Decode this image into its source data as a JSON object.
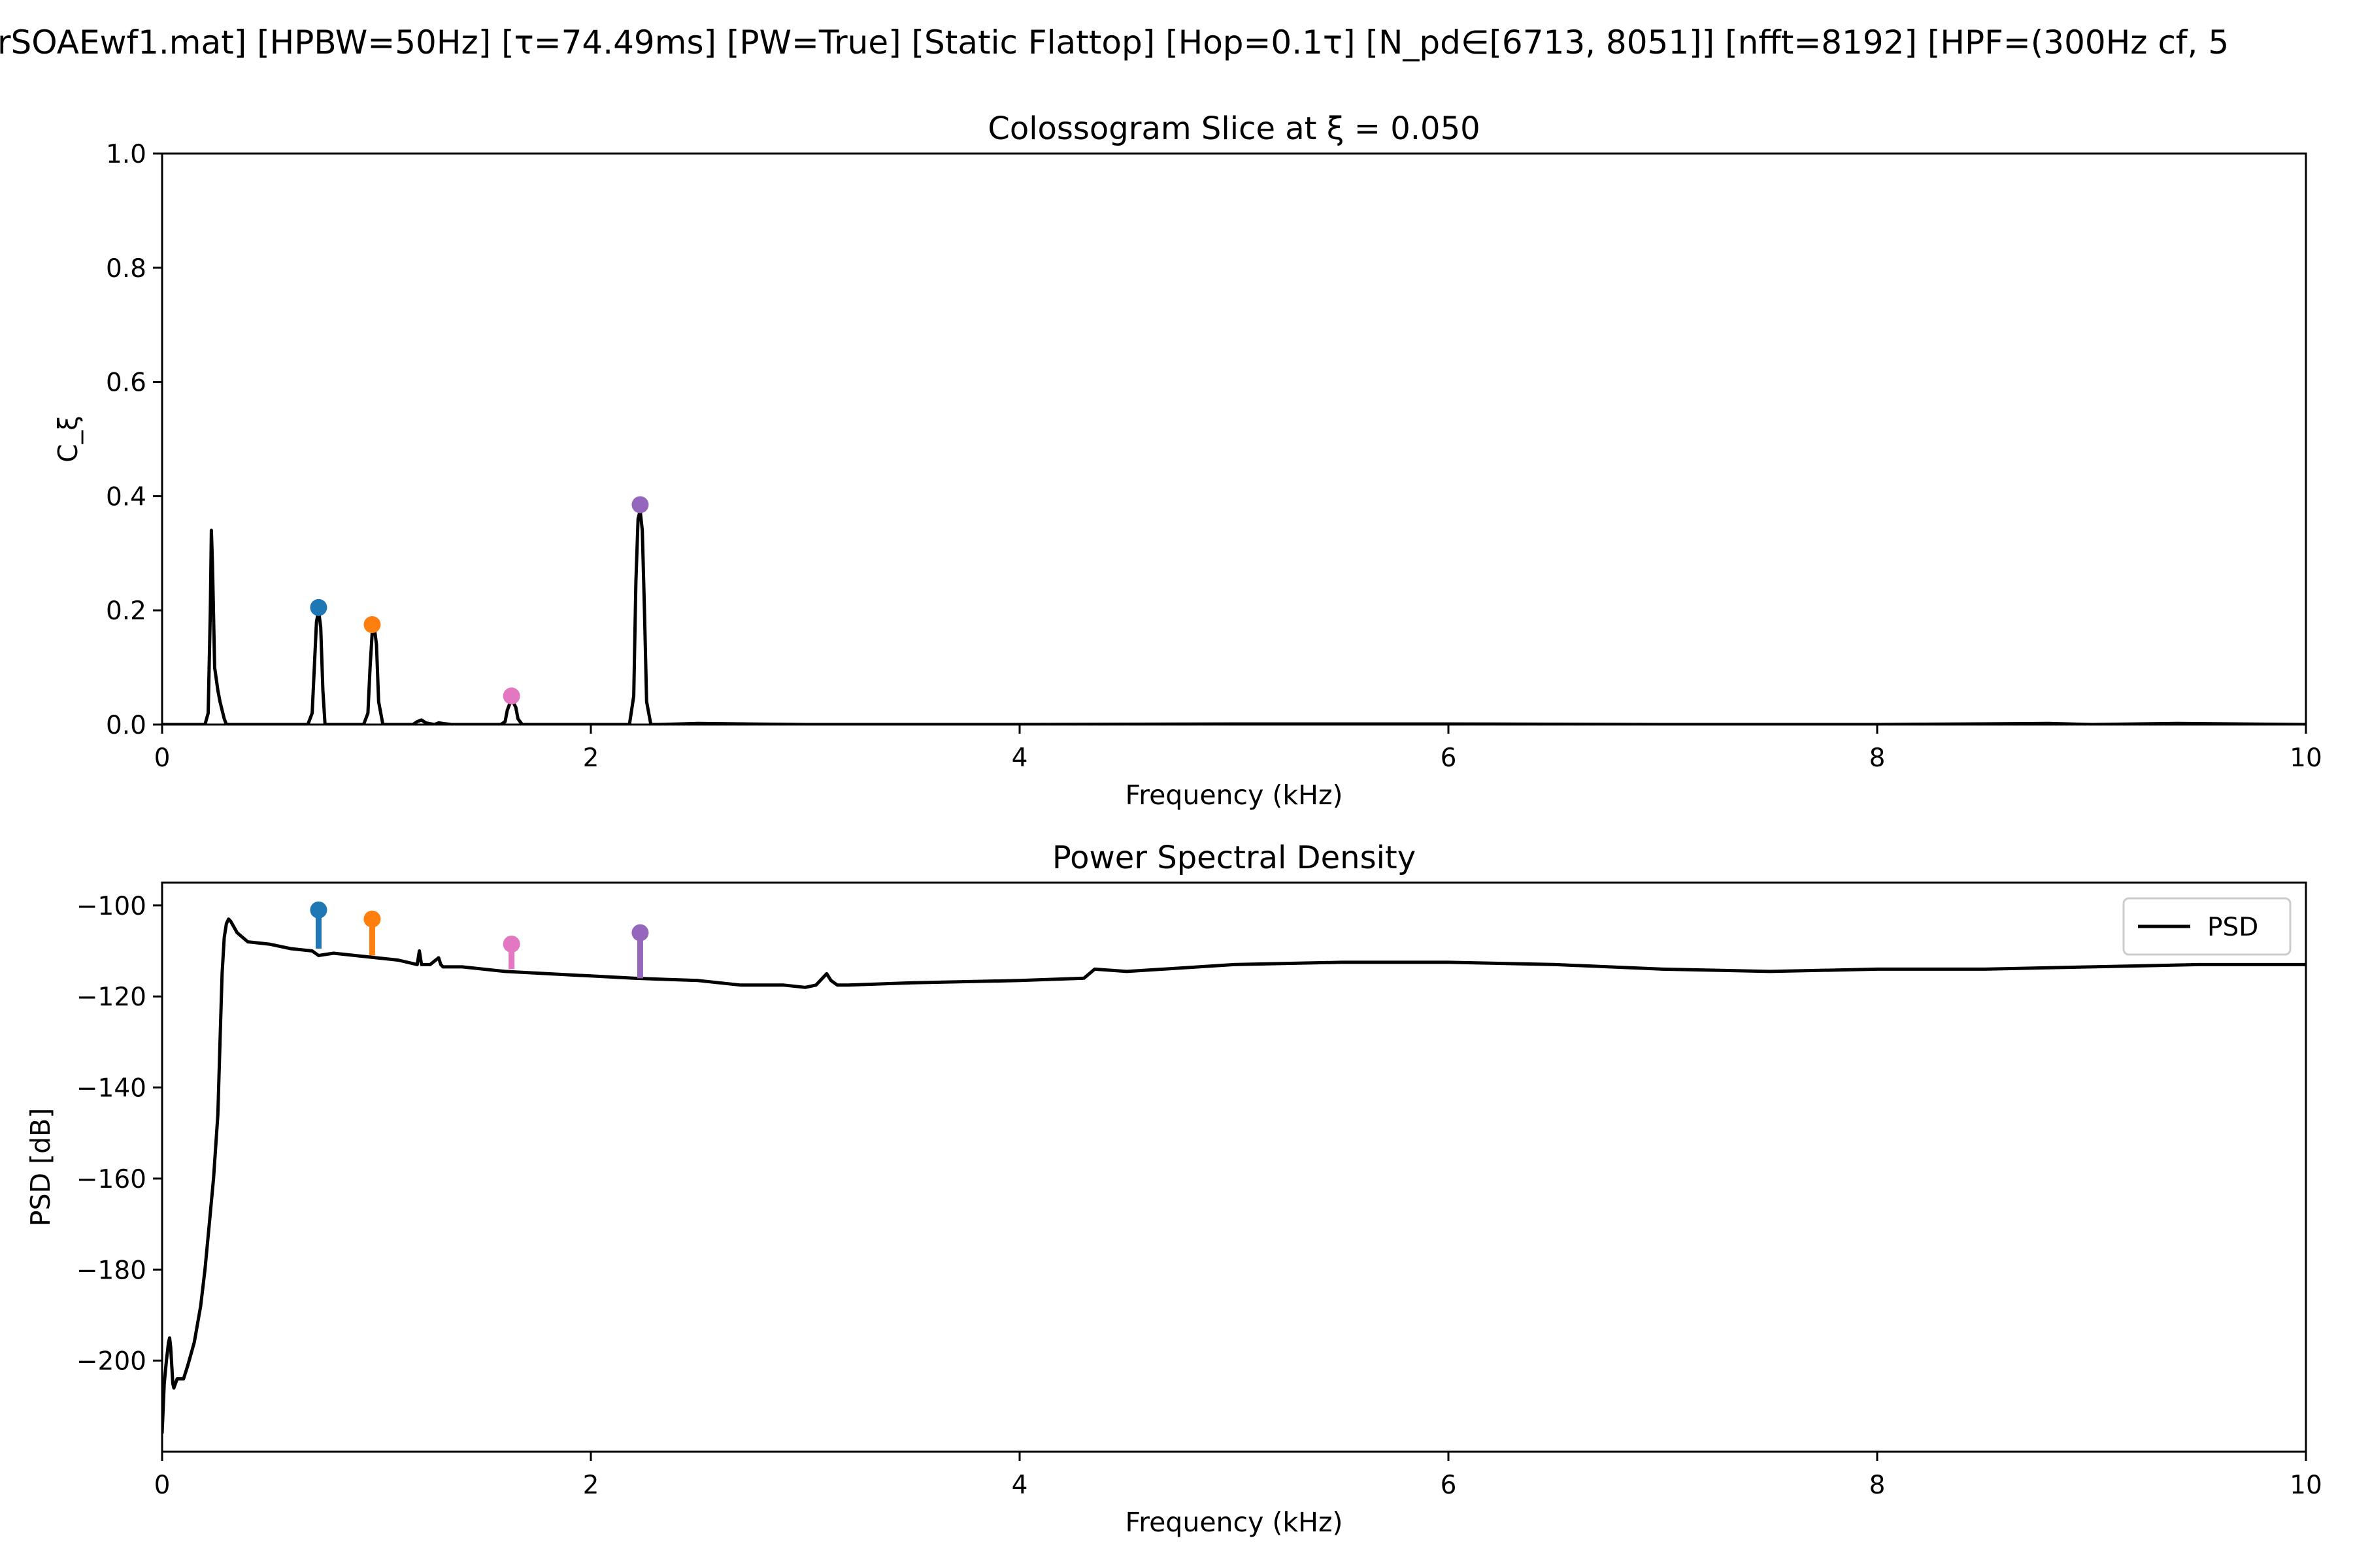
{
  "suptitle": "rSOAEwf1.mat]   [HPBW=50Hz]   [τ=74.49ms]   [PW=True]   [Static Flattop]   [Hop=0.1τ]   [N_pd∈[6713, 8051]]   [nfft=8192]   [HPF=(300Hz cf, 5",
  "colors": {
    "line": "#000000",
    "blue": "#1f77b4",
    "orange": "#ff7f0e",
    "pink": "#e377c2",
    "purple": "#9467bd"
  },
  "chart_data": [
    {
      "type": "line",
      "title": "Colossogram Slice at ξ = 0.050",
      "xlabel": "Frequency (kHz)",
      "ylabel": "C_ξ",
      "xlim": [
        0,
        10
      ],
      "ylim": [
        0,
        1.0
      ],
      "xticks": [
        "0",
        "2",
        "4",
        "6",
        "8",
        "10"
      ],
      "yticks": [
        "0.0",
        "0.2",
        "0.4",
        "0.6",
        "0.8",
        "1.0"
      ],
      "grid": false,
      "legend": null,
      "series": [
        {
          "x": [
            0,
            0.2,
            0.215,
            0.225,
            0.23,
            0.235,
            0.245,
            0.26,
            0.27,
            0.29,
            0.3,
            0.32,
            0.5,
            0.68,
            0.7,
            0.71,
            0.72,
            0.73,
            0.74,
            0.75,
            0.76,
            0.78,
            0.8,
            0.94,
            0.96,
            0.97,
            0.98,
            0.99,
            1.0,
            1.01,
            1.03,
            1.05,
            1.17,
            1.19,
            1.21,
            1.23,
            1.27,
            1.29,
            1.31,
            1.35,
            1.58,
            1.6,
            1.61,
            1.63,
            1.65,
            1.66,
            1.68,
            1.7,
            2.15,
            2.18,
            2.2,
            2.21,
            2.22,
            2.23,
            2.24,
            2.25,
            2.26,
            2.28,
            2.31,
            2.5,
            3.0,
            4.0,
            5.0,
            6.0,
            7.0,
            8.0,
            8.8,
            9.0,
            9.4,
            10.0
          ],
          "y": [
            0.0,
            0.0,
            0.02,
            0.2,
            0.34,
            0.28,
            0.1,
            0.06,
            0.04,
            0.01,
            0.0,
            0.0,
            0.0,
            0.0,
            0.02,
            0.1,
            0.18,
            0.2,
            0.17,
            0.06,
            0.0,
            0.0,
            0.0,
            0.0,
            0.02,
            0.1,
            0.16,
            0.17,
            0.14,
            0.04,
            0.0,
            0.0,
            0.0,
            0.005,
            0.008,
            0.003,
            0.0,
            0.003,
            0.002,
            0.0,
            0.0,
            0.005,
            0.025,
            0.045,
            0.03,
            0.01,
            0.0,
            0.0,
            0.0,
            0.0,
            0.05,
            0.25,
            0.36,
            0.375,
            0.34,
            0.2,
            0.04,
            0.0,
            0.0,
            0.002,
            0.0,
            0.0,
            0.001,
            0.001,
            0.0,
            0.0,
            0.002,
            0.0,
            0.002,
            0.0
          ]
        }
      ],
      "markers": [
        {
          "x": 0.73,
          "y": 0.205,
          "color": "blue"
        },
        {
          "x": 0.98,
          "y": 0.175,
          "color": "orange"
        },
        {
          "x": 1.63,
          "y": 0.05,
          "color": "pink"
        },
        {
          "x": 2.23,
          "y": 0.385,
          "color": "purple"
        }
      ]
    },
    {
      "type": "line",
      "title": "Power Spectral Density",
      "xlabel": "Frequency (kHz)",
      "ylabel": "PSD [dB]",
      "xlim": [
        0,
        10
      ],
      "ylim": [
        -220,
        -95
      ],
      "xticks": [
        "0",
        "2",
        "4",
        "6",
        "8",
        "10"
      ],
      "yticks": [
        "−100",
        "−120",
        "−140",
        "−160",
        "−180",
        "−200"
      ],
      "grid": false,
      "legend": {
        "position": "top-right",
        "entries": [
          "PSD"
        ]
      },
      "series": [
        {
          "name": "PSD",
          "x": [
            0,
            0.01,
            0.02,
            0.03,
            0.035,
            0.04,
            0.05,
            0.055,
            0.07,
            0.1,
            0.12,
            0.15,
            0.18,
            0.2,
            0.22,
            0.24,
            0.26,
            0.27,
            0.28,
            0.29,
            0.3,
            0.31,
            0.32,
            0.35,
            0.4,
            0.5,
            0.6,
            0.7,
            0.73,
            0.8,
            0.9,
            1.0,
            1.1,
            1.19,
            1.2,
            1.21,
            1.25,
            1.29,
            1.3,
            1.31,
            1.4,
            1.6,
            1.8,
            2.0,
            2.2,
            2.5,
            2.7,
            2.9,
            3.0,
            3.05,
            3.1,
            3.12,
            3.15,
            3.2,
            3.5,
            4.0,
            4.3,
            4.35,
            4.5,
            5.0,
            5.5,
            6.0,
            6.5,
            7.0,
            7.5,
            8.0,
            8.5,
            9.0,
            9.5,
            10.0
          ],
          "y": [
            -216,
            -205,
            -200,
            -196,
            -195,
            -197,
            -205,
            -206,
            -204,
            -204,
            -201,
            -196,
            -188,
            -180,
            -170,
            -160,
            -146,
            -130,
            -115,
            -107,
            -104,
            -103,
            -103.5,
            -106,
            -108,
            -108.5,
            -109.5,
            -110,
            -111,
            -110.5,
            -111,
            -111.5,
            -112,
            -113,
            -110,
            -113,
            -113,
            -111.5,
            -113,
            -113.5,
            -113.5,
            -114.5,
            -115,
            -115.5,
            -116,
            -116.5,
            -117.5,
            -117.5,
            -118,
            -117.5,
            -115,
            -116.5,
            -117.5,
            -117.5,
            -117,
            -116.5,
            -116,
            -114,
            -114.5,
            -113,
            -112.5,
            -112.5,
            -113,
            -114,
            -114.5,
            -114,
            -114,
            -113.5,
            -113,
            -113
          ]
        }
      ],
      "markers": [
        {
          "x": 0.73,
          "y": -101,
          "base": -109.5,
          "color": "blue"
        },
        {
          "x": 0.98,
          "y": -103,
          "base": -111,
          "color": "orange"
        },
        {
          "x": 1.63,
          "y": -108.5,
          "base": -114,
          "color": "pink"
        },
        {
          "x": 2.23,
          "y": -106,
          "base": -116,
          "color": "purple"
        }
      ]
    }
  ]
}
